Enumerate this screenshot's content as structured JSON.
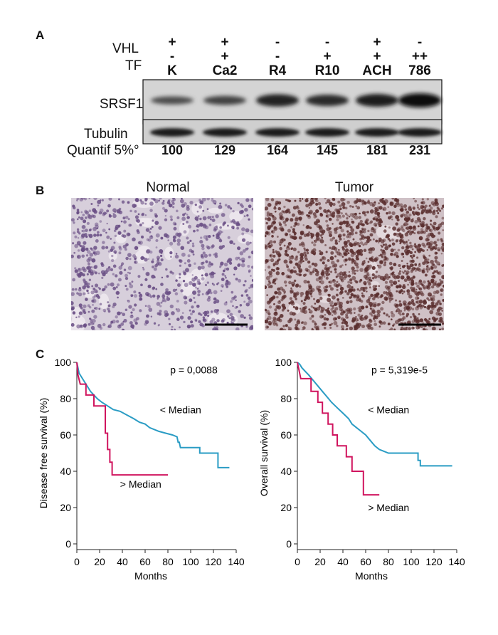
{
  "panelA": {
    "letter": "A",
    "vhl_label": "VHL",
    "tf_label": "TF",
    "lanes": [
      {
        "vhl": "+",
        "tf": "-",
        "name": "K",
        "quant": "100",
        "srsf1": 0.38,
        "tub": 0.85
      },
      {
        "vhl": "+",
        "tf": "+",
        "name": "Ca2",
        "quant": "129",
        "srsf1": 0.48,
        "tub": 0.85
      },
      {
        "vhl": "-",
        "tf": "-",
        "name": "R4",
        "quant": "164",
        "srsf1": 0.8,
        "tub": 0.85
      },
      {
        "vhl": "-",
        "tf": "+",
        "name": "R10",
        "quant": "145",
        "srsf1": 0.72,
        "tub": 0.85
      },
      {
        "vhl": "+",
        "tf": "+",
        "name": "ACH",
        "quant": "181",
        "srsf1": 0.85,
        "tub": 0.85
      },
      {
        "vhl": "-",
        "tf": "++",
        "name": "786",
        "quant": "231",
        "srsf1": 1.0,
        "tub": 0.85
      }
    ],
    "srsf1_label": "SRSF1",
    "tubulin_label": "Tubulin",
    "quantif_label": "Quantif 5%°"
  },
  "panelB": {
    "letter": "B",
    "normal_title": "Normal",
    "tumor_title": "Tumor"
  },
  "panelC": {
    "letter": "C"
  },
  "chart_data": [
    {
      "type": "line",
      "ylabel": "Disease free survival (%)",
      "xlabel": "Months",
      "xlim": [
        0,
        140
      ],
      "ylim": [
        0,
        100
      ],
      "xticks": [
        0,
        20,
        40,
        60,
        80,
        100,
        120,
        140
      ],
      "yticks": [
        0,
        20,
        40,
        60,
        80,
        100
      ],
      "annotation": "p = 0,0088",
      "series": [
        {
          "name": "< Median",
          "color": "#2a9cc4",
          "points": [
            [
              0,
              100
            ],
            [
              1,
              97
            ],
            [
              2,
              94
            ],
            [
              4,
              92
            ],
            [
              6,
              90
            ],
            [
              8,
              88
            ],
            [
              10,
              86
            ],
            [
              12,
              84
            ],
            [
              15,
              82
            ],
            [
              18,
              80
            ],
            [
              22,
              78
            ],
            [
              27,
              76
            ],
            [
              32,
              74
            ],
            [
              38,
              73
            ],
            [
              44,
              71
            ],
            [
              50,
              69
            ],
            [
              55,
              67
            ],
            [
              60,
              66
            ],
            [
              64,
              64
            ],
            [
              68,
              63
            ],
            [
              72,
              62
            ],
            [
              78,
              61
            ],
            [
              84,
              60
            ],
            [
              88,
              59
            ],
            [
              89,
              56
            ],
            [
              90,
              56
            ],
            [
              91,
              53
            ],
            [
              100,
              53
            ],
            [
              108,
              53
            ],
            [
              108,
              50
            ],
            [
              124,
              50
            ],
            [
              124,
              42
            ],
            [
              134,
              42
            ]
          ]
        },
        {
          "name": "> Median",
          "color": "#d0145e",
          "points": [
            [
              0,
              100
            ],
            [
              1,
              93
            ],
            [
              3,
              88
            ],
            [
              8,
              88
            ],
            [
              8,
              82
            ],
            [
              15,
              82
            ],
            [
              15,
              76
            ],
            [
              25,
              76
            ],
            [
              25,
              61
            ],
            [
              27,
              61
            ],
            [
              27,
              52
            ],
            [
              29,
              52
            ],
            [
              29,
              45
            ],
            [
              31,
              45
            ],
            [
              31,
              38
            ],
            [
              80,
              38
            ]
          ]
        }
      ]
    },
    {
      "type": "line",
      "ylabel": "Overall survival (%)",
      "xlabel": "Months",
      "xlim": [
        0,
        140
      ],
      "ylim": [
        0,
        100
      ],
      "xticks": [
        0,
        20,
        40,
        60,
        80,
        100,
        120,
        140
      ],
      "yticks": [
        0,
        20,
        40,
        60,
        80,
        100
      ],
      "annotation": "p = 5,319e-5",
      "series": [
        {
          "name": "< Median",
          "color": "#2a9cc4",
          "points": [
            [
              0,
              100
            ],
            [
              2,
              99
            ],
            [
              4,
              97
            ],
            [
              7,
              95
            ],
            [
              10,
              93
            ],
            [
              14,
              90
            ],
            [
              18,
              87
            ],
            [
              22,
              84
            ],
            [
              26,
              81
            ],
            [
              30,
              78
            ],
            [
              35,
              75
            ],
            [
              40,
              72
            ],
            [
              45,
              69
            ],
            [
              48,
              66
            ],
            [
              52,
              64
            ],
            [
              56,
              62
            ],
            [
              60,
              60
            ],
            [
              64,
              57
            ],
            [
              68,
              54
            ],
            [
              72,
              52
            ],
            [
              76,
              51
            ],
            [
              80,
              50
            ],
            [
              90,
              50
            ],
            [
              100,
              50
            ],
            [
              106,
              50
            ],
            [
              106,
              46
            ],
            [
              108,
              46
            ],
            [
              108,
              43
            ],
            [
              118,
              43
            ],
            [
              136,
              43
            ]
          ]
        },
        {
          "name": "> Median",
          "color": "#d0145e",
          "points": [
            [
              0,
              100
            ],
            [
              1,
              97
            ],
            [
              3,
              91
            ],
            [
              12,
              91
            ],
            [
              12,
              84
            ],
            [
              18,
              84
            ],
            [
              18,
              78
            ],
            [
              22,
              78
            ],
            [
              22,
              72
            ],
            [
              27,
              72
            ],
            [
              27,
              66
            ],
            [
              31,
              66
            ],
            [
              31,
              60
            ],
            [
              35,
              60
            ],
            [
              35,
              54
            ],
            [
              43,
              54
            ],
            [
              43,
              48
            ],
            [
              48,
              48
            ],
            [
              48,
              40
            ],
            [
              58,
              40
            ],
            [
              58,
              27
            ],
            [
              72,
              27
            ]
          ]
        }
      ]
    }
  ]
}
